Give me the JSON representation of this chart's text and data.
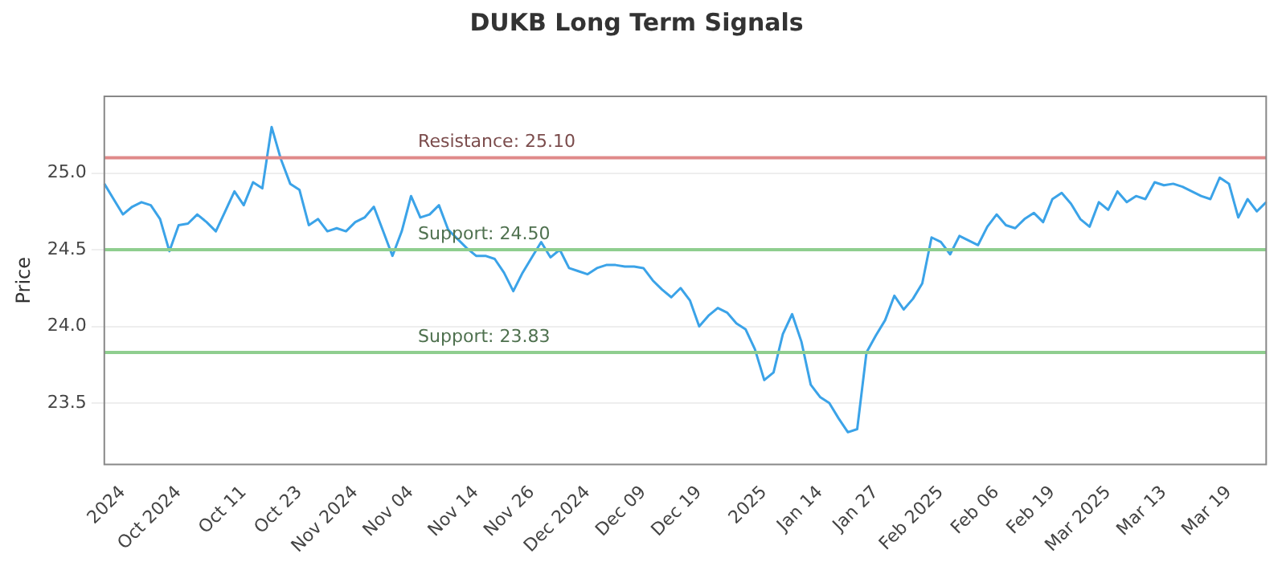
{
  "chart_data": {
    "type": "line",
    "title": "DUKB Long Term Signals",
    "ylabel": "Price",
    "categories": [
      null,
      null,
      "2024",
      null,
      null,
      null,
      null,
      null,
      "Oct 2024",
      null,
      null,
      null,
      null,
      null,
      null,
      "Oct 11",
      null,
      null,
      null,
      null,
      null,
      "Oct 23",
      null,
      null,
      null,
      null,
      null,
      "Nov 2024",
      null,
      null,
      null,
      null,
      null,
      "Nov 04",
      null,
      null,
      null,
      null,
      null,
      null,
      "Nov 14",
      null,
      null,
      null,
      null,
      null,
      "Nov 26",
      null,
      null,
      null,
      null,
      null,
      "Dec 2024",
      null,
      null,
      null,
      null,
      null,
      "Dec 09",
      null,
      null,
      null,
      null,
      null,
      "Dec 19",
      null,
      null,
      null,
      null,
      null,
      null,
      "2025",
      null,
      null,
      null,
      null,
      null,
      "Jan 14",
      null,
      null,
      null,
      null,
      null,
      "Jan 27",
      null,
      null,
      null,
      null,
      null,
      null,
      "Feb 2025",
      null,
      null,
      null,
      null,
      null,
      "Feb 06",
      null,
      null,
      null,
      null,
      null,
      "Feb 19",
      null,
      null,
      null,
      null,
      null,
      "Mar 2025",
      null,
      null,
      null,
      null,
      null,
      "Mar 13",
      null,
      null,
      null,
      null,
      null,
      null,
      "Mar 19",
      null,
      null,
      null,
      null
    ],
    "series": [
      {
        "color": "#3ba3e8",
        "values": [
          24.93,
          24.83,
          24.73,
          24.78,
          24.81,
          24.79,
          24.7,
          24.49,
          24.66,
          24.67,
          24.73,
          24.68,
          24.62,
          24.75,
          24.88,
          24.79,
          24.94,
          24.9,
          25.3,
          25.09,
          24.93,
          24.89,
          24.66,
          24.7,
          24.62,
          24.64,
          24.62,
          24.68,
          24.71,
          24.78,
          24.62,
          24.46,
          24.62,
          24.85,
          24.71,
          24.73,
          24.79,
          24.63,
          24.57,
          24.51,
          24.46,
          24.46,
          24.44,
          24.35,
          24.23,
          24.35,
          24.45,
          24.55,
          24.45,
          24.5,
          24.38,
          24.36,
          24.34,
          24.38,
          24.4,
          24.4,
          24.39,
          24.39,
          24.38,
          24.3,
          24.24,
          24.19,
          24.25,
          24.17,
          24.0,
          24.07,
          24.12,
          24.09,
          24.02,
          23.98,
          23.85,
          23.65,
          23.7,
          23.95,
          24.08,
          23.9,
          23.62,
          23.54,
          23.5,
          23.4,
          23.31,
          23.33,
          23.83,
          23.94,
          24.04,
          24.2,
          24.11,
          24.18,
          24.28,
          24.58,
          24.55,
          24.47,
          24.59,
          24.56,
          24.53,
          24.65,
          24.73,
          24.66,
          24.64,
          24.7,
          24.74,
          24.68,
          24.83,
          24.87,
          24.8,
          24.7,
          24.65,
          24.81,
          24.76,
          24.88,
          24.81,
          24.85,
          24.83,
          24.94,
          24.92,
          24.93,
          24.91,
          24.88,
          24.85,
          24.83,
          24.97,
          24.93,
          24.71,
          24.83,
          24.75,
          24.81
        ]
      }
    ],
    "ylim": [
      23.1,
      25.5
    ],
    "yticks": [
      23.5,
      {
        "value": 24,
        "label": "24.0"
      },
      24.5,
      {
        "value": 25,
        "label": "25.0"
      }
    ],
    "grid": "y",
    "marker": "none",
    "line_style": "solid",
    "ref_lines": [
      {
        "axis": "y",
        "value": 25.1,
        "label": "Resistance: 25.10",
        "color": "#e08a8a"
      },
      {
        "axis": "y",
        "value": 24.5,
        "label": "Support: 24.50",
        "color": "#8fce8f"
      },
      {
        "axis": "y",
        "value": 23.83,
        "label": "Support: 23.83",
        "color": "#8fce8f"
      }
    ]
  }
}
